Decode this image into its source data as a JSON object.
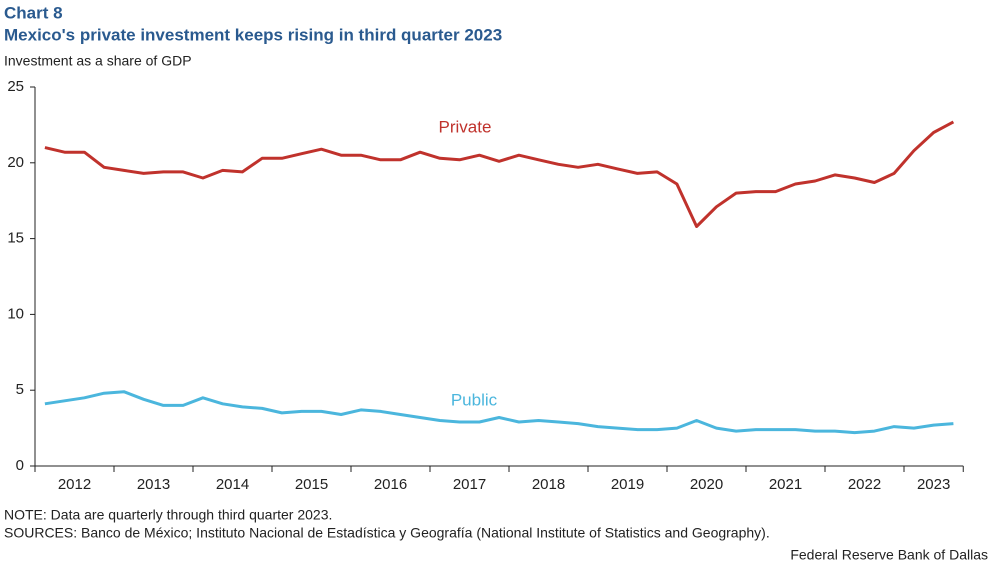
{
  "chart_data": {
    "type": "line",
    "title": "Chart 8",
    "subtitle": "Mexico's private investment keeps rising in third quarter 2023",
    "ylabel": "Investment  as a share of GDP",
    "categories": [
      "2012",
      null,
      null,
      null,
      "2013",
      null,
      null,
      null,
      "2014",
      null,
      null,
      null,
      "2015",
      null,
      null,
      null,
      "2016",
      null,
      null,
      null,
      "2017",
      null,
      null,
      null,
      "2018",
      null,
      null,
      null,
      "2019",
      null,
      null,
      null,
      "2020",
      null,
      null,
      null,
      "2021",
      null,
      null,
      null,
      "2022",
      null,
      null,
      null,
      "2023",
      null,
      null
    ],
    "series": [
      {
        "name": "Private",
        "color": "#c0322c",
        "values": [
          21.0,
          20.7,
          20.7,
          19.7,
          19.5,
          19.3,
          19.4,
          19.4,
          19.0,
          19.5,
          19.4,
          20.3,
          20.3,
          20.6,
          20.9,
          20.5,
          20.5,
          20.2,
          20.2,
          20.7,
          20.3,
          20.2,
          20.5,
          20.1,
          20.5,
          20.2,
          19.9,
          19.7,
          19.9,
          19.6,
          19.3,
          19.4,
          18.6,
          15.8,
          17.1,
          18.0,
          18.1,
          18.1,
          18.6,
          18.8,
          19.2,
          19.0,
          18.7,
          19.3,
          20.8,
          22.0,
          22.7
        ]
      },
      {
        "name": "Public",
        "color": "#4bb6dd",
        "values": [
          4.1,
          4.3,
          4.5,
          4.8,
          4.9,
          4.4,
          4.0,
          4.0,
          4.5,
          4.1,
          3.9,
          3.8,
          3.5,
          3.6,
          3.6,
          3.4,
          3.7,
          3.6,
          3.4,
          3.2,
          3.0,
          2.9,
          2.9,
          3.2,
          2.9,
          3.0,
          2.9,
          2.8,
          2.6,
          2.5,
          2.4,
          2.4,
          2.5,
          3.0,
          2.5,
          2.3,
          2.4,
          2.4,
          2.4,
          2.3,
          2.3,
          2.2,
          2.3,
          2.6,
          2.5,
          2.7,
          2.8
        ]
      }
    ],
    "ylim": [
      0,
      25
    ],
    "yticks": [
      0,
      5,
      10,
      15,
      20,
      25
    ],
    "grid": false,
    "note": "NOTE: Data are quarterly through third quarter 2023.",
    "sources": "SOURCES: Banco de México; Instituto Nacional de Estadística y Geografía (National Institute  of Statistics and Geography).",
    "credit": "Federal Reserve Bank of Dallas"
  }
}
